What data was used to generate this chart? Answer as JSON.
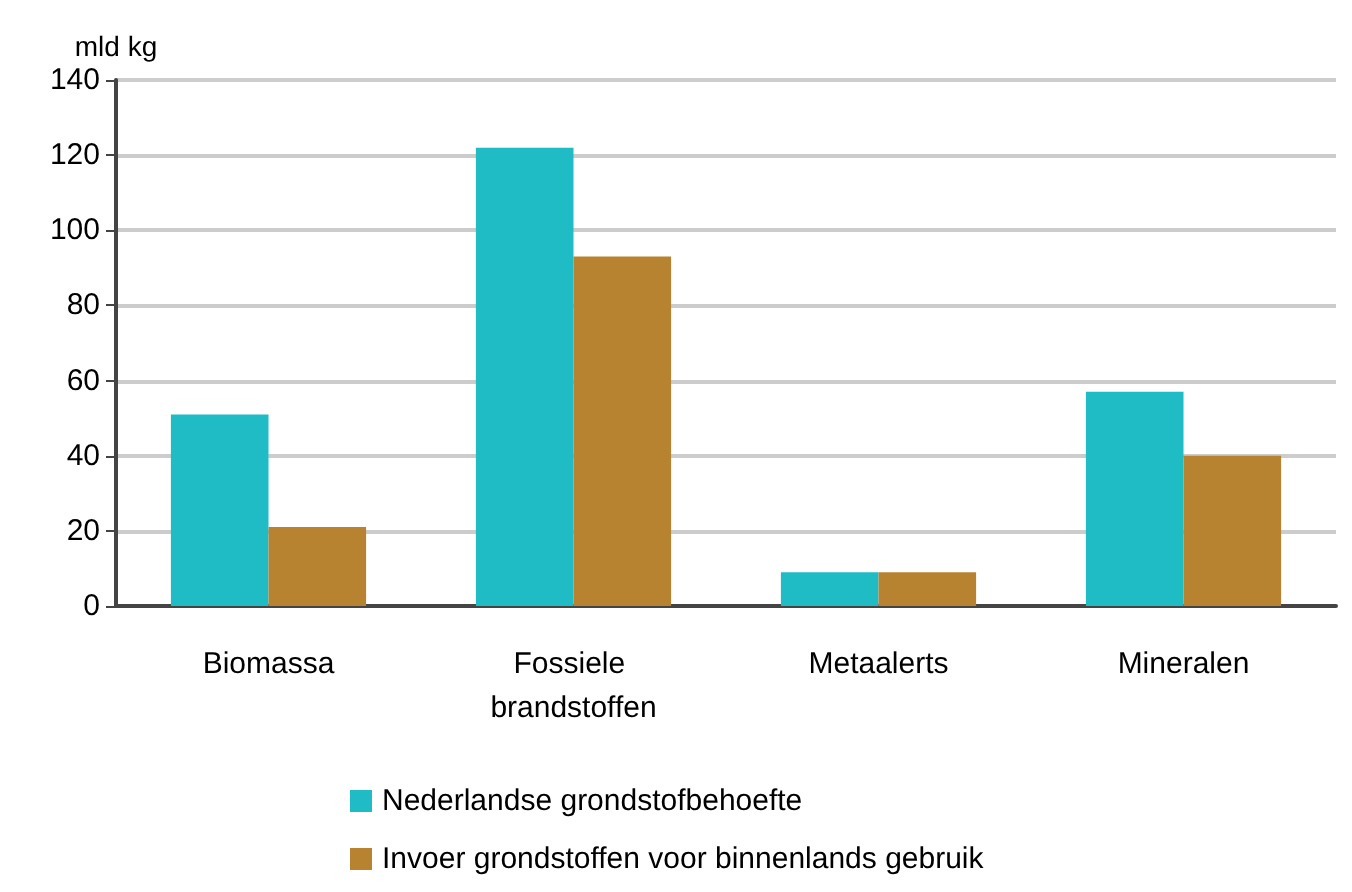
{
  "chart_data": {
    "type": "bar",
    "ylabel": "mld kg",
    "categories": [
      "Biomassa",
      "Fossiele brandstoffen",
      "Metaalerts",
      "Mineralen"
    ],
    "series": [
      {
        "name": "Nederlandse grondstofbehoefte",
        "color": "#1fbcc5",
        "values": [
          51,
          122,
          9,
          57
        ]
      },
      {
        "name": "Invoer grondstoffen voor binnenlands gebruik",
        "color": "#b88330",
        "values": [
          21,
          93,
          9,
          40
        ]
      }
    ],
    "ylim": [
      0,
      140
    ],
    "yticks": [
      0,
      20,
      40,
      60,
      80,
      100,
      120,
      140
    ],
    "grid": "y",
    "legend": "bottom"
  }
}
